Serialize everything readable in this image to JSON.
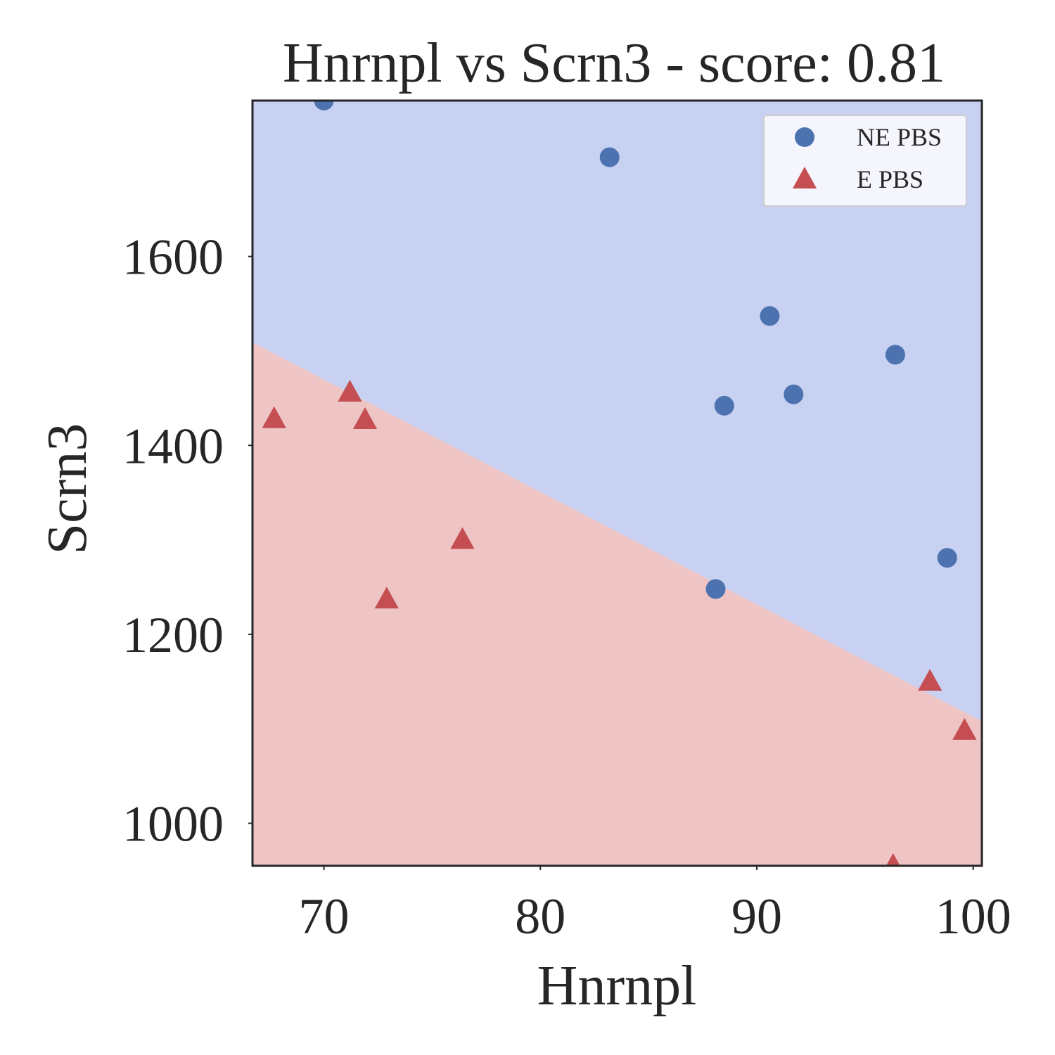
{
  "chart_data": {
    "type": "scatter",
    "title": "Hnrnpl vs Scrn3 - score: 0.81",
    "xlabel": "Hnrnpl",
    "ylabel": "Scrn3",
    "xlim": [
      66.7,
      100.4
    ],
    "ylim": [
      955,
      1765
    ],
    "xticks": [
      70,
      80,
      90,
      100
    ],
    "yticks": [
      1000,
      1200,
      1400,
      1600
    ],
    "x_tick_labels": [
      "70",
      "80",
      "90",
      "100"
    ],
    "y_tick_labels": [
      "1000",
      "1200",
      "1400",
      "1600"
    ],
    "grid": false,
    "legend": {
      "placement": "top-right"
    },
    "decision_boundary": {
      "points": [
        [
          66.7,
          1509
        ],
        [
          100.4,
          1108
        ]
      ],
      "colors": {
        "above": "#c8d1f1",
        "below": "#eec4c4"
      }
    },
    "series": [
      {
        "name": "NE PBS",
        "marker": "circle",
        "color": "#4c72b0",
        "points": [
          [
            70.0,
            1765
          ],
          [
            83.2,
            1705
          ],
          [
            90.6,
            1537
          ],
          [
            96.4,
            1496
          ],
          [
            91.7,
            1454
          ],
          [
            88.5,
            1442
          ],
          [
            98.8,
            1281
          ],
          [
            88.1,
            1248
          ]
        ]
      },
      {
        "name": "E PBS",
        "marker": "triangle",
        "color": "#c44e52",
        "points": [
          [
            67.7,
            1428
          ],
          [
            71.2,
            1456
          ],
          [
            71.9,
            1427
          ],
          [
            76.4,
            1300
          ],
          [
            72.9,
            1237
          ],
          [
            98.0,
            1150
          ],
          [
            99.6,
            1098
          ],
          [
            96.3,
            955
          ]
        ]
      }
    ]
  }
}
